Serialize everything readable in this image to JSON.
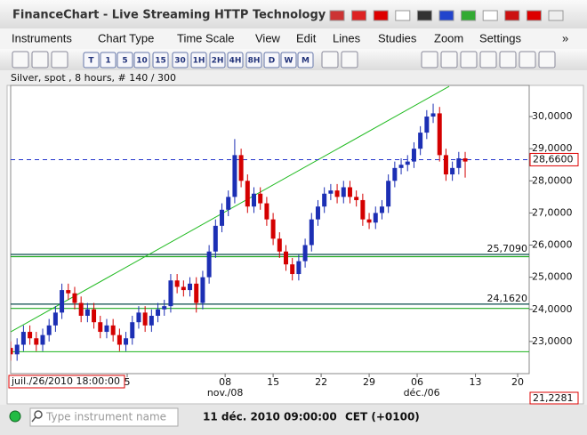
{
  "window": {
    "title": "FinanceChart - Live Streaming HTTP Technology"
  },
  "menu": [
    "Instruments",
    "Chart Type",
    "Time Scale",
    "View",
    "Edit",
    "Lines",
    "Studies",
    "Zoom",
    "Settings",
    "»"
  ],
  "toolbar": [
    "T",
    "1",
    "5",
    "10",
    "15",
    "30",
    "1H",
    "2H",
    "4H",
    "8H",
    "D",
    "W",
    "M"
  ],
  "status": {
    "search_placeholder": "Type instrument name",
    "datetime": "11 déc. 2010 09:00:00",
    "timezone": "CET (+0100)"
  },
  "chart_data": {
    "type": "candlestick",
    "title": "Silver, spot , 8 hours, # 140 / 300",
    "x": [
      0,
      1,
      2,
      3,
      4,
      5,
      6,
      7,
      8,
      9,
      10,
      11,
      12,
      13,
      14,
      15,
      16,
      17,
      18,
      19,
      20,
      21,
      22,
      23,
      24,
      25,
      26,
      27,
      28,
      29,
      30,
      31,
      32,
      33,
      34,
      35,
      36,
      37,
      38,
      39,
      40,
      41,
      42,
      43,
      44,
      45,
      46,
      47,
      48,
      49,
      50,
      51,
      52,
      53,
      54,
      55,
      56,
      57,
      58,
      59,
      60,
      61,
      62,
      63,
      64,
      65,
      66,
      67,
      68,
      69,
      70,
      71
    ],
    "open": [
      22.8,
      22.6,
      22.9,
      23.3,
      23.1,
      22.9,
      23.2,
      23.5,
      23.9,
      24.6,
      24.5,
      24.2,
      23.8,
      24.0,
      23.6,
      23.3,
      23.5,
      23.2,
      22.9,
      23.1,
      23.6,
      23.9,
      23.5,
      23.8,
      24.0,
      24.1,
      24.9,
      24.7,
      24.6,
      24.8,
      24.2,
      25.0,
      25.8,
      26.6,
      27.1,
      27.5,
      28.8,
      28.0,
      27.2,
      27.6,
      27.3,
      26.8,
      26.2,
      25.8,
      25.4,
      25.1,
      25.5,
      26.0,
      26.8,
      27.2,
      27.6,
      27.7,
      27.5,
      27.8,
      27.5,
      27.4,
      26.8,
      26.7,
      27.0,
      27.2,
      28.0,
      28.4,
      28.5,
      28.6,
      29.0,
      29.5,
      30.0,
      30.1,
      28.8,
      28.2,
      28.4,
      28.7
    ],
    "high": [
      23.0,
      23.1,
      23.5,
      23.5,
      23.3,
      23.4,
      23.7,
      24.1,
      24.8,
      24.8,
      24.7,
      24.4,
      24.2,
      24.2,
      23.8,
      23.7,
      23.7,
      23.4,
      23.3,
      23.8,
      24.1,
      24.1,
      24.0,
      24.2,
      24.3,
      25.1,
      25.1,
      24.9,
      25.0,
      25.0,
      25.2,
      26.0,
      26.8,
      27.3,
      27.7,
      29.3,
      29.0,
      28.2,
      27.8,
      27.8,
      27.5,
      27.0,
      26.4,
      26.0,
      25.6,
      25.7,
      26.2,
      27.0,
      27.4,
      27.8,
      27.9,
      27.9,
      28.0,
      28.0,
      27.7,
      27.6,
      27.0,
      27.2,
      27.4,
      28.2,
      28.6,
      28.7,
      28.8,
      29.2,
      29.7,
      30.2,
      30.4,
      30.3,
      29.0,
      28.6,
      28.9,
      28.9
    ],
    "low": [
      22.4,
      22.4,
      22.7,
      22.9,
      22.7,
      22.7,
      23.0,
      23.3,
      23.7,
      24.3,
      24.0,
      23.6,
      23.6,
      23.4,
      23.1,
      23.1,
      23.0,
      22.7,
      22.7,
      22.9,
      23.4,
      23.3,
      23.3,
      23.6,
      23.8,
      23.9,
      24.5,
      24.4,
      24.4,
      23.9,
      24.0,
      24.8,
      25.6,
      26.4,
      26.9,
      27.3,
      27.8,
      27.0,
      27.0,
      27.1,
      26.6,
      26.0,
      25.6,
      25.2,
      24.9,
      24.9,
      25.3,
      25.8,
      26.6,
      27.0,
      27.4,
      27.3,
      27.3,
      27.3,
      27.2,
      26.6,
      26.5,
      26.5,
      26.8,
      27.0,
      27.8,
      28.2,
      28.3,
      28.4,
      28.8,
      29.3,
      29.8,
      28.6,
      28.0,
      28.0,
      28.2,
      28.1
    ],
    "close": [
      22.6,
      22.9,
      23.3,
      23.1,
      22.9,
      23.2,
      23.5,
      23.9,
      24.6,
      24.5,
      24.2,
      23.8,
      24.0,
      23.6,
      23.3,
      23.5,
      23.2,
      22.9,
      23.1,
      23.6,
      23.9,
      23.5,
      23.8,
      24.0,
      24.1,
      24.9,
      24.7,
      24.6,
      24.8,
      24.2,
      25.0,
      25.8,
      26.6,
      27.1,
      27.5,
      28.8,
      28.0,
      27.2,
      27.6,
      27.3,
      26.8,
      26.2,
      25.8,
      25.4,
      25.1,
      25.5,
      26.0,
      26.8,
      27.2,
      27.6,
      27.7,
      27.5,
      27.8,
      27.5,
      27.4,
      26.8,
      26.7,
      27.0,
      27.2,
      28.0,
      28.4,
      28.5,
      28.6,
      29.0,
      29.5,
      30.0,
      30.1,
      28.8,
      28.2,
      28.4,
      28.7,
      28.6
    ],
    "up_color": "#1c2fb4",
    "down_color": "#d40000",
    "xlim": [
      0,
      81
    ],
    "xticks": [
      {
        "value": 18.2,
        "label": "5"
      },
      {
        "value": 33.5,
        "label": "08"
      },
      {
        "value": 41,
        "label": "15"
      },
      {
        "value": 48.5,
        "label": "22"
      },
      {
        "value": 56,
        "label": "29"
      },
      {
        "value": 63.5,
        "label": "06"
      },
      {
        "value": 72.6,
        "label": "13"
      },
      {
        "value": 79.2,
        "label": "20"
      }
    ],
    "month_ticks": [
      {
        "value": 33.5,
        "label": "nov./08"
      },
      {
        "value": 64.2,
        "label": "déc./06"
      }
    ],
    "ylim": [
      22.0,
      30.97
    ],
    "yticks": [
      {
        "value": 23,
        "label": "23,0000"
      },
      {
        "value": 24,
        "label": "24,0000"
      },
      {
        "value": 25,
        "label": "25,0000"
      },
      {
        "value": 26,
        "label": "26,0000"
      },
      {
        "value": 27,
        "label": "27,0000"
      },
      {
        "value": 28,
        "label": "28,0000"
      },
      {
        "value": 29,
        "label": "29,0000"
      },
      {
        "value": 30,
        "label": "30,0000"
      }
    ],
    "last_price": {
      "value": 28.66,
      "label": "28,6600",
      "color": "#2233cc"
    },
    "levels": [
      {
        "value": 25.709,
        "label": "25,7090",
        "color": "#0b4d4d"
      },
      {
        "value": 25.64,
        "color": "#22aa22"
      },
      {
        "value": 24.162,
        "label": "24,1620",
        "color": "#0b4d4d"
      },
      {
        "value": 24.03,
        "color": "#22aa22"
      },
      {
        "value": 22.68,
        "color": "#33bb33"
      }
    ],
    "trendline": {
      "x": [
        0,
        68.5
      ],
      "y": [
        23.3,
        30.94
      ],
      "color": "#22bb22"
    },
    "cursor_time": "juil./26/2010 18:00:00",
    "cursor_price": "21,2281"
  }
}
